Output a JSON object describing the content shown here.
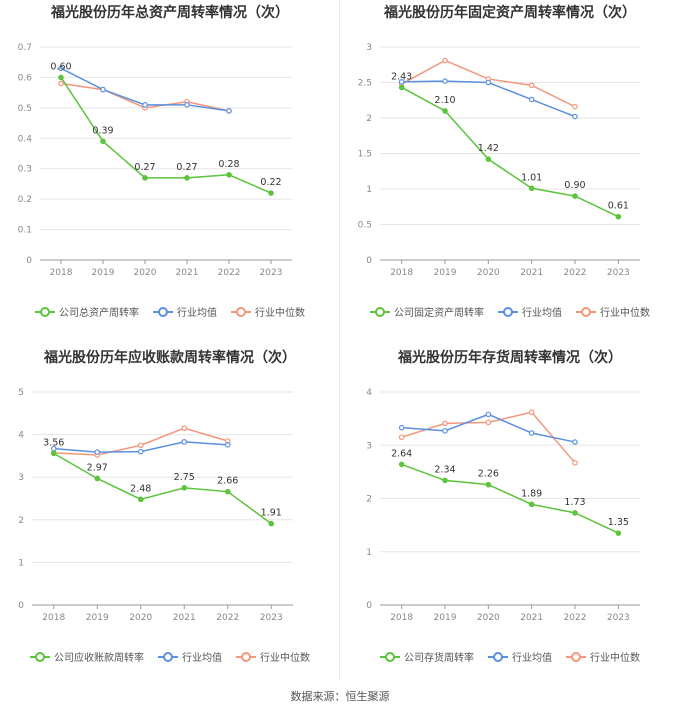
{
  "colors": {
    "company": "#5bc43a",
    "industry_avg": "#5b8fe0",
    "industry_median": "#f4967a",
    "grid": "#e5e5e5",
    "axis": "#999999"
  },
  "footer": {
    "source": "数据来源：恒生聚源"
  },
  "chart_data": [
    {
      "type": "line",
      "title": "福光股份历年总资产周转率情况（次）",
      "x": [
        "2018",
        "2019",
        "2020",
        "2021",
        "2022",
        "2023"
      ],
      "ylim": [
        0,
        0.7
      ],
      "yticks": [
        "0",
        "0.1",
        "0.2",
        "0.3",
        "0.4",
        "0.5",
        "0.6",
        "0.7"
      ],
      "series": [
        {
          "name": "公司总资产周转率",
          "role": "company",
          "values": [
            0.6,
            0.39,
            0.27,
            0.27,
            0.28,
            0.22
          ],
          "labels": [
            "0.60",
            "0.39",
            "0.27",
            "0.27",
            "0.28",
            "0.22"
          ]
        },
        {
          "name": "行业均值",
          "role": "industry_avg",
          "values": [
            0.63,
            0.56,
            0.51,
            0.51,
            0.49,
            null
          ]
        },
        {
          "name": "行业中位数",
          "role": "industry_median",
          "values": [
            0.58,
            0.56,
            0.5,
            0.52,
            0.49,
            null
          ]
        }
      ]
    },
    {
      "type": "line",
      "title": "福光股份历年固定资产周转率情况（次）",
      "x": [
        "2018",
        "2019",
        "2020",
        "2021",
        "2022",
        "2023"
      ],
      "ylim": [
        0,
        3
      ],
      "yticks": [
        "0",
        "0.5",
        "1",
        "1.5",
        "2",
        "2.5",
        "3"
      ],
      "series": [
        {
          "name": "公司固定资产周转率",
          "role": "company",
          "values": [
            2.43,
            2.1,
            1.42,
            1.01,
            0.9,
            0.61
          ],
          "labels": [
            "2.43",
            "2.10",
            "1.42",
            "1.01",
            "0.90",
            "0.61"
          ]
        },
        {
          "name": "行业均值",
          "role": "industry_avg",
          "values": [
            2.51,
            2.52,
            2.5,
            2.26,
            2.02,
            null
          ]
        },
        {
          "name": "行业中位数",
          "role": "industry_median",
          "values": [
            2.48,
            2.81,
            2.55,
            2.46,
            2.16,
            null
          ]
        }
      ]
    },
    {
      "type": "line",
      "title": "福光股份历年应收账款周转率情况（次）",
      "x": [
        "2018",
        "2019",
        "2020",
        "2021",
        "2022",
        "2023"
      ],
      "ylim": [
        0,
        5
      ],
      "yticks": [
        "0",
        "1",
        "2",
        "3",
        "4",
        "5"
      ],
      "series": [
        {
          "name": "公司应收账款周转率",
          "role": "company",
          "values": [
            3.56,
            2.97,
            2.48,
            2.75,
            2.66,
            1.91
          ],
          "labels": [
            "3.56",
            "2.97",
            "2.48",
            "2.75",
            "2.66",
            "1.91"
          ]
        },
        {
          "name": "行业均值",
          "role": "industry_avg",
          "values": [
            3.67,
            3.59,
            3.6,
            3.83,
            3.76,
            null
          ]
        },
        {
          "name": "行业中位数",
          "role": "industry_median",
          "values": [
            3.57,
            3.52,
            3.75,
            4.15,
            3.85,
            null
          ]
        }
      ]
    },
    {
      "type": "line",
      "title": "福光股份历年存货周转率情况（次）",
      "x": [
        "2018",
        "2019",
        "2020",
        "2021",
        "2022",
        "2023"
      ],
      "ylim": [
        0,
        4
      ],
      "yticks": [
        "0",
        "1",
        "2",
        "3",
        "4"
      ],
      "series": [
        {
          "name": "公司存货周转率",
          "role": "company",
          "values": [
            2.64,
            2.34,
            2.26,
            1.89,
            1.73,
            1.35
          ],
          "labels": [
            "2.64",
            "2.34",
            "2.26",
            "1.89",
            "1.73",
            "1.35"
          ]
        },
        {
          "name": "行业均值",
          "role": "industry_avg",
          "values": [
            3.33,
            3.27,
            3.58,
            3.23,
            3.06,
            null
          ]
        },
        {
          "name": "行业中位数",
          "role": "industry_median",
          "values": [
            3.15,
            3.41,
            3.43,
            3.62,
            2.67,
            null
          ]
        }
      ]
    }
  ]
}
